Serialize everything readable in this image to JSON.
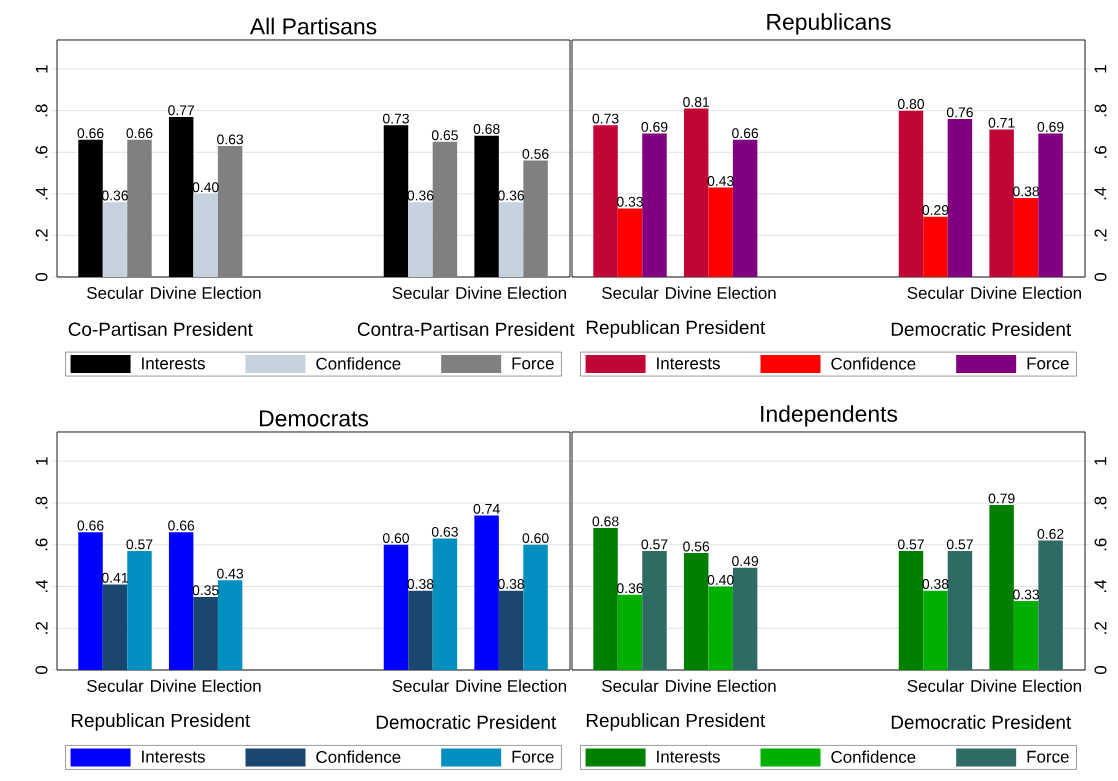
{
  "chart_data": [
    {
      "type": "bar",
      "title": "All Partisans",
      "categories": [
        "Secular",
        "Divine Election",
        "Secular",
        "Divine Election"
      ],
      "annotations": [
        "Co-Partisan President",
        "Contra-Partisan President"
      ],
      "series": [
        {
          "name": "Interests",
          "color": "#000000",
          "values": [
            0.66,
            0.77,
            0.73,
            0.68
          ],
          "value_labels": [
            "0.66",
            "0.77",
            "0.73",
            "0.68"
          ]
        },
        {
          "name": "Confidence",
          "color": "#c6d3df",
          "values": [
            0.36,
            0.4,
            0.36,
            0.36
          ],
          "value_labels": [
            "0.36",
            "0.40",
            "0.36",
            "0.36"
          ]
        },
        {
          "name": "Force",
          "color": "#808080",
          "values": [
            0.66,
            0.63,
            0.65,
            0.56
          ],
          "value_labels": [
            "0.66",
            "0.63",
            "0.65",
            "0.56"
          ]
        }
      ],
      "ylim": [
        0,
        1.14
      ],
      "yticks": [
        0,
        {
          "value": 0.2,
          "label": ".2"
        },
        {
          "value": 0.4,
          "label": ".4"
        },
        {
          "value": 0.6,
          "label": ".6"
        },
        {
          "value": 0.8,
          "label": ".8"
        },
        1
      ],
      "grid": "y",
      "legend": "bottom"
    },
    {
      "type": "bar",
      "title": "Republicans",
      "categories": [
        "Secular",
        "Divine Election",
        "Secular",
        "Divine Election"
      ],
      "annotations": [
        "Republican President",
        "Democratic President"
      ],
      "series": [
        {
          "name": "Interests",
          "color": "#c10534",
          "axis": "y2",
          "values": [
            0.73,
            0.81,
            0.8,
            0.71
          ],
          "value_labels": [
            "0.73",
            "0.81",
            "0.80",
            "0.71"
          ]
        },
        {
          "name": "Confidence",
          "color": "#ff0000",
          "axis": "y2",
          "values": [
            0.33,
            0.43,
            0.29,
            0.38
          ],
          "value_labels": [
            "0.33",
            "0.43",
            "0.29",
            "0.38"
          ]
        },
        {
          "name": "Force",
          "color": "#800080",
          "axis": "y2",
          "values": [
            0.69,
            0.66,
            0.76,
            0.69
          ],
          "value_labels": [
            "0.69",
            "0.66",
            "0.76",
            "0.69"
          ]
        }
      ],
      "y2lim": [
        0,
        1.14
      ],
      "y2ticks": [
        0,
        {
          "value": 0.2,
          "label": ".2"
        },
        {
          "value": 0.4,
          "label": ".4"
        },
        {
          "value": 0.6,
          "label": ".6"
        },
        {
          "value": 0.8,
          "label": ".8"
        },
        1
      ],
      "grid": "y",
      "legend": "bottom"
    },
    {
      "type": "bar",
      "title": "Democrats",
      "categories": [
        "Secular",
        "Divine Election",
        "Secular",
        "Divine Election"
      ],
      "annotations": [
        "Republican President",
        "Democratic President"
      ],
      "series": [
        {
          "name": "Interests",
          "color": "#0000ff",
          "values": [
            0.66,
            0.66,
            0.6,
            0.74
          ],
          "value_labels": [
            "0.66",
            "0.66",
            "0.60",
            "0.74"
          ]
        },
        {
          "name": "Confidence",
          "color": "#1a476f",
          "values": [
            0.41,
            0.35,
            0.38,
            0.38
          ],
          "value_labels": [
            "0.41",
            "0.35",
            "0.38",
            "0.38"
          ]
        },
        {
          "name": "Force",
          "color": "#008fbf",
          "values": [
            0.57,
            0.43,
            0.63,
            0.6
          ],
          "value_labels": [
            "0.57",
            "0.43",
            "0.63",
            "0.60"
          ]
        }
      ],
      "ylim": [
        0,
        1.14
      ],
      "yticks": [
        0,
        {
          "value": 0.2,
          "label": ".2"
        },
        {
          "value": 0.4,
          "label": ".4"
        },
        {
          "value": 0.6,
          "label": ".6"
        },
        {
          "value": 0.8,
          "label": ".8"
        },
        1
      ],
      "grid": "y",
      "legend": "bottom"
    },
    {
      "type": "bar",
      "title": "Independents",
      "categories": [
        "Secular",
        "Divine Election",
        "Secular",
        "Divine Election"
      ],
      "annotations": [
        "Republican President",
        "Democratic President"
      ],
      "series": [
        {
          "name": "Interests",
          "color": "#007f00",
          "axis": "y2",
          "values": [
            0.68,
            0.56,
            0.57,
            0.79
          ],
          "value_labels": [
            "0.68",
            "0.56",
            "0.57",
            "0.79"
          ]
        },
        {
          "name": "Confidence",
          "color": "#00b000",
          "axis": "y2",
          "values": [
            0.36,
            0.4,
            0.38,
            0.33
          ],
          "value_labels": [
            "0.36",
            "0.40",
            "0.38",
            "0.33"
          ]
        },
        {
          "name": "Force",
          "color": "#2e6b64",
          "axis": "y2",
          "values": [
            0.57,
            0.49,
            0.57,
            0.62
          ],
          "value_labels": [
            "0.57",
            "0.49",
            "0.57",
            "0.62"
          ]
        }
      ],
      "y2lim": [
        0,
        1.14
      ],
      "y2ticks": [
        0,
        {
          "value": 0.2,
          "label": ".2"
        },
        {
          "value": 0.4,
          "label": ".4"
        },
        {
          "value": 0.6,
          "label": ".6"
        },
        {
          "value": 0.8,
          "label": ".8"
        },
        1
      ],
      "grid": "y",
      "legend": "bottom"
    }
  ]
}
